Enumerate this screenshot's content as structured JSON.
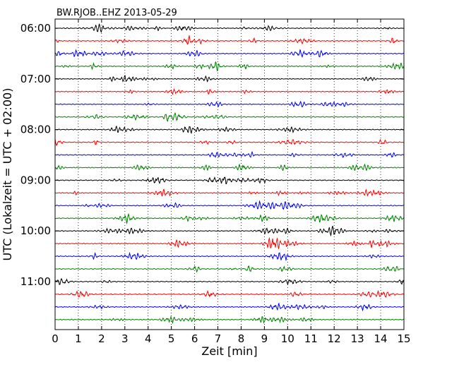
{
  "chart_data": {
    "type": "line",
    "title": "BW.RJOB..EHZ 2013-05-29",
    "xlabel": "Zeit  [min]",
    "ylabel": "UTC (Lokalzeit = UTC + 02:00)",
    "xlim": [
      0,
      15
    ],
    "x_ticks": [
      "0",
      "1",
      "2",
      "3",
      "4",
      "5",
      "6",
      "7",
      "8",
      "9",
      "10",
      "11",
      "12",
      "13",
      "14",
      "15"
    ],
    "y_tick_labels": [
      "06:00",
      "07:00",
      "08:00",
      "09:00",
      "10:00",
      "11:00"
    ],
    "grid": "vertical dotted",
    "trace_interval_minutes": 15,
    "trace_count": 24,
    "trace_colors": [
      "#000000",
      "#ff0000",
      "#0000ff",
      "#008000"
    ],
    "series": [
      {
        "start": "06:00"
      },
      {
        "start": "06:15"
      },
      {
        "start": "06:30"
      },
      {
        "start": "06:45"
      },
      {
        "start": "07:00"
      },
      {
        "start": "07:15"
      },
      {
        "start": "07:30"
      },
      {
        "start": "07:45"
      },
      {
        "start": "08:00"
      },
      {
        "start": "08:15"
      },
      {
        "start": "08:30"
      },
      {
        "start": "08:45"
      },
      {
        "start": "09:00"
      },
      {
        "start": "09:15"
      },
      {
        "start": "09:30"
      },
      {
        "start": "09:45"
      },
      {
        "start": "10:00"
      },
      {
        "start": "10:15"
      },
      {
        "start": "10:30"
      },
      {
        "start": "10:45"
      },
      {
        "start": "11:00"
      },
      {
        "start": "11:15"
      },
      {
        "start": "11:30"
      },
      {
        "start": "11:45"
      }
    ]
  }
}
